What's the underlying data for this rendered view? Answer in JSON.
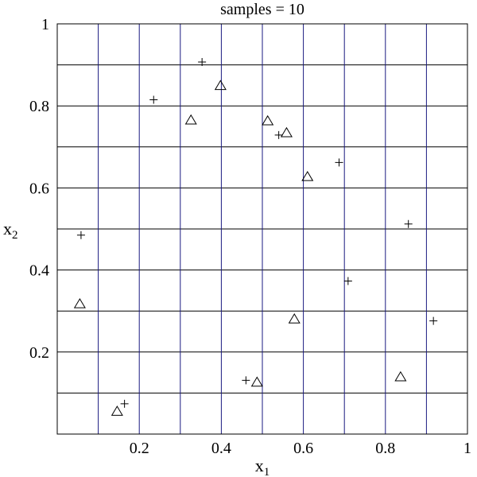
{
  "chart_data": {
    "type": "scatter",
    "title": "samples = 10",
    "xlabel": "x",
    "xlabel_sub": "1",
    "ylabel": "x",
    "ylabel_sub": "2",
    "xlim": [
      0,
      1
    ],
    "ylim": [
      0,
      1
    ],
    "x_ticks": [
      {
        "value": 0.2,
        "label": "0.2"
      },
      {
        "value": 0.4,
        "label": "0.4"
      },
      {
        "value": 0.6,
        "label": "0.6"
      },
      {
        "value": 0.8,
        "label": "0.8"
      },
      {
        "value": 1.0,
        "label": "1"
      }
    ],
    "y_ticks": [
      {
        "value": 0.2,
        "label": "0.2"
      },
      {
        "value": 0.4,
        "label": "0.4"
      },
      {
        "value": 0.6,
        "label": "0.6"
      },
      {
        "value": 0.8,
        "label": "0.8"
      },
      {
        "value": 1.0,
        "label": "1"
      }
    ],
    "grid": true,
    "vertical_grid_x": [
      0.1,
      0.2,
      0.3,
      0.4,
      0.5,
      0.6,
      0.7,
      0.8,
      0.9
    ],
    "horizontal_grid_y": [
      0.1,
      0.2,
      0.3,
      0.4,
      0.5,
      0.6,
      0.7,
      0.8,
      0.9
    ],
    "vertical_grid_color": "#1a1a80",
    "horizontal_grid_color": "#000000",
    "series": [
      {
        "marker": "plus",
        "points": [
          [
            0.353,
            0.907
          ],
          [
            0.235,
            0.815
          ],
          [
            0.54,
            0.729
          ],
          [
            0.687,
            0.662
          ],
          [
            0.058,
            0.485
          ],
          [
            0.856,
            0.512
          ],
          [
            0.709,
            0.373
          ],
          [
            0.917,
            0.276
          ],
          [
            0.46,
            0.131
          ],
          [
            0.164,
            0.074
          ]
        ]
      },
      {
        "marker": "triangle",
        "points": [
          [
            0.398,
            0.848
          ],
          [
            0.326,
            0.764
          ],
          [
            0.513,
            0.762
          ],
          [
            0.559,
            0.733
          ],
          [
            0.61,
            0.626
          ],
          [
            0.055,
            0.316
          ],
          [
            0.578,
            0.279
          ],
          [
            0.487,
            0.125
          ],
          [
            0.837,
            0.138
          ],
          [
            0.146,
            0.054
          ]
        ]
      }
    ]
  }
}
